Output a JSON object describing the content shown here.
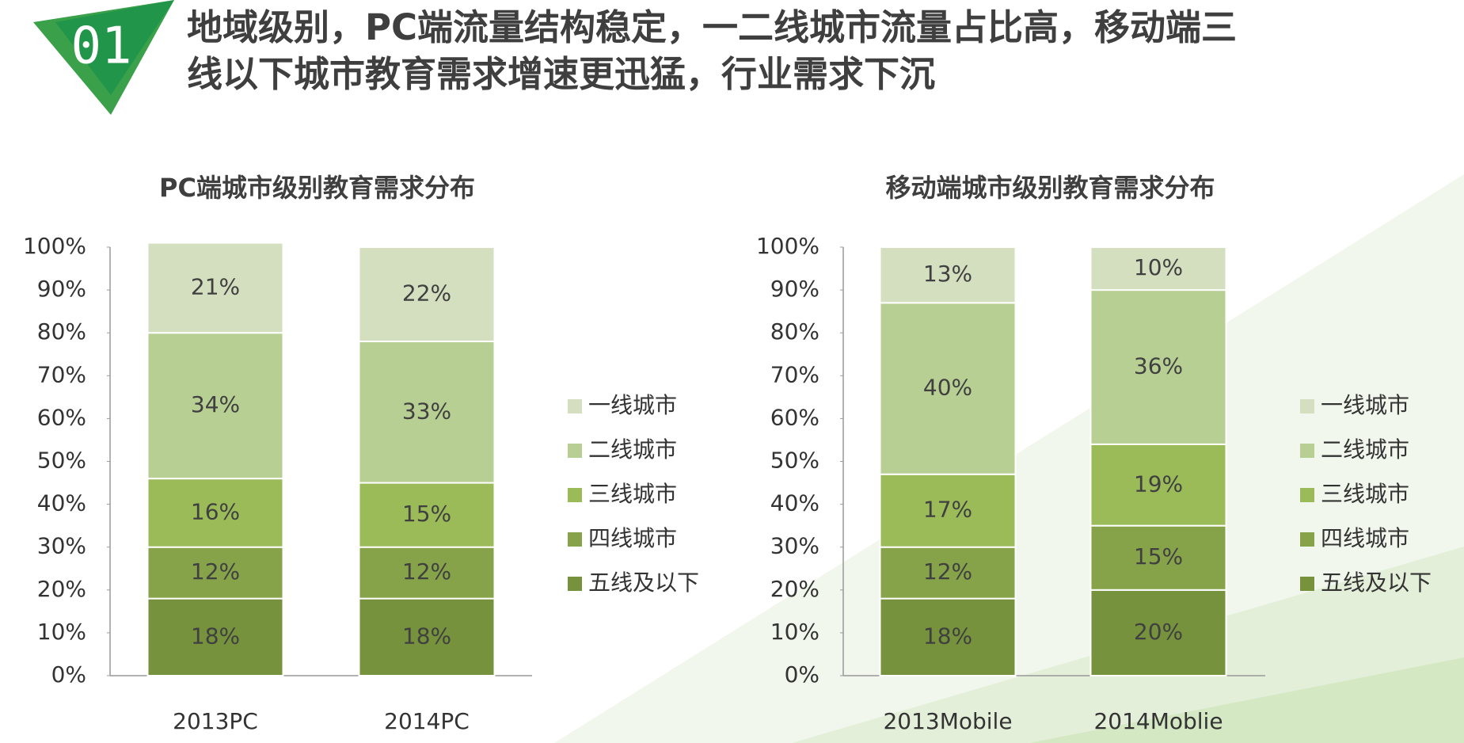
{
  "header": {
    "number": "01",
    "title_lines": [
      "地域级别，PC端流量结构稳定，一二线城市流量占比高，移动端三",
      "线以下城市教育需求增速更迅猛，行业需求下沉"
    ]
  },
  "chart_data": [
    {
      "type": "stacked_bar",
      "title": "PC端城市级别教育需求分布",
      "categories": [
        "2013PC",
        "2014PC"
      ],
      "series": [
        {
          "name": "五线及以下",
          "color": "#76923c",
          "values": [
            18,
            18
          ],
          "value_labels": [
            "18%",
            "18%"
          ]
        },
        {
          "name": "四线城市",
          "color": "#86a34a",
          "values": [
            12,
            12
          ],
          "value_labels": [
            "12%",
            "12%"
          ]
        },
        {
          "name": "三线城市",
          "color": "#9bbb59",
          "values": [
            16,
            15
          ],
          "value_labels": [
            "16%",
            "15%"
          ]
        },
        {
          "name": "二线城市",
          "color": "#b8cf93",
          "values": [
            34,
            33
          ],
          "value_labels": [
            "34%",
            "33%"
          ]
        },
        {
          "name": "一线城市",
          "color": "#d3dfbf",
          "values": [
            21,
            22
          ],
          "value_labels": [
            "21%",
            "22%"
          ]
        }
      ],
      "ylim": [
        0,
        100
      ],
      "yticks": [
        {
          "value": 0,
          "label": "0%"
        },
        {
          "value": 10,
          "label": "10%"
        },
        {
          "value": 20,
          "label": "20%"
        },
        {
          "value": 30,
          "label": "30%"
        },
        {
          "value": 40,
          "label": "40%"
        },
        {
          "value": 50,
          "label": "50%"
        },
        {
          "value": 60,
          "label": "60%"
        },
        {
          "value": 70,
          "label": "70%"
        },
        {
          "value": 80,
          "label": "80%"
        },
        {
          "value": 90,
          "label": "90%"
        },
        {
          "value": 100,
          "label": "100%"
        }
      ],
      "legend": "right"
    },
    {
      "type": "stacked_bar",
      "title": "移动端城市级别教育需求分布",
      "categories": [
        "2013Mobile",
        "2014Moblie"
      ],
      "series": [
        {
          "name": "五线及以下",
          "color": "#76923c",
          "values": [
            18,
            20
          ],
          "value_labels": [
            "18%",
            "20%"
          ]
        },
        {
          "name": "四线城市",
          "color": "#86a34a",
          "values": [
            12,
            15
          ],
          "value_labels": [
            "12%",
            "15%"
          ]
        },
        {
          "name": "三线城市",
          "color": "#9bbb59",
          "values": [
            17,
            19
          ],
          "value_labels": [
            "17%",
            "19%"
          ]
        },
        {
          "name": "二线城市",
          "color": "#b8cf93",
          "values": [
            40,
            36
          ],
          "value_labels": [
            "40%",
            "36%"
          ]
        },
        {
          "name": "一线城市",
          "color": "#d3dfbf",
          "values": [
            13,
            10
          ],
          "value_labels": [
            "13%",
            "10%"
          ]
        }
      ],
      "ylim": [
        0,
        100
      ],
      "yticks": [
        {
          "value": 0,
          "label": "0%"
        },
        {
          "value": 10,
          "label": "10%"
        },
        {
          "value": 20,
          "label": "20%"
        },
        {
          "value": 30,
          "label": "30%"
        },
        {
          "value": 40,
          "label": "40%"
        },
        {
          "value": 50,
          "label": "50%"
        },
        {
          "value": 60,
          "label": "60%"
        },
        {
          "value": 70,
          "label": "70%"
        },
        {
          "value": 80,
          "label": "80%"
        },
        {
          "value": 90,
          "label": "90%"
        },
        {
          "value": 100,
          "label": "100%"
        }
      ],
      "legend": "right"
    }
  ]
}
